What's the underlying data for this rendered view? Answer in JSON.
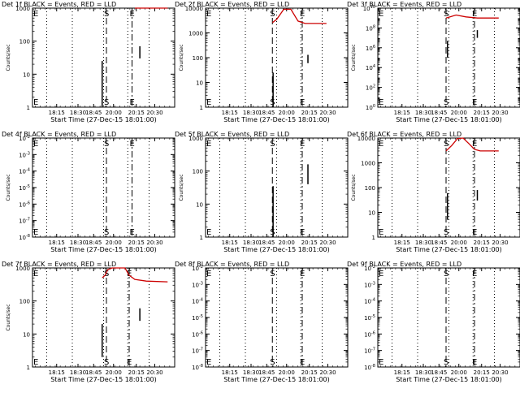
{
  "figure": {
    "xlabel": "Start Time (27-Dec-15 18:01:00)",
    "ylabel": "Counts/sec",
    "x_ticks": [
      "18:15",
      "18:30",
      "18:45",
      "20:00",
      "20:15",
      "20:30"
    ]
  },
  "colors": {
    "events": "#000000",
    "lld": "#cc0000",
    "background": "#ffffff"
  },
  "chart_data": [
    {
      "type": "line",
      "title": "Det 1f BLACK = Events, RED = LLD",
      "xlabel": "Start Time (27-Dec-15 18:01:00)",
      "ylabel": "Counts/sec",
      "yscale": "log",
      "y_ticks": [
        "1",
        "10",
        "100",
        "1000"
      ],
      "markers": [
        {
          "label": "E",
          "x": 0.0
        },
        {
          "label": "S",
          "x": 0.52
        },
        {
          "label": "E",
          "x": 0.7
        }
      ],
      "events": [
        {
          "x": 0.49,
          "y": [
            1,
            25
          ]
        },
        {
          "x": 0.755,
          "y": [
            30,
            70
          ]
        }
      ],
      "lld": [
        [
          0.72,
          1000
        ],
        [
          0.8,
          1000
        ],
        [
          0.95,
          1000
        ]
      ]
    },
    {
      "type": "line",
      "title": "Det 2f BLACK = Events, RED = LLD",
      "xlabel": "Start Time (27-Dec-15 18:01:00)",
      "ylabel": "Counts/sec",
      "yscale": "log",
      "y_ticks": [
        "1",
        "10",
        "100",
        "1000",
        "10000"
      ],
      "markers": [
        {
          "label": "E",
          "x": 0.0
        },
        {
          "label": "S",
          "x": 0.47
        },
        {
          "label": "E",
          "x": 0.68
        }
      ],
      "events": [
        {
          "x": 0.475,
          "y": [
            1,
            25
          ]
        },
        {
          "x": 0.72,
          "y": [
            60,
            130
          ]
        }
      ],
      "lld": [
        [
          0.47,
          2600
        ],
        [
          0.5,
          3500
        ],
        [
          0.55,
          9000
        ],
        [
          0.6,
          9000
        ],
        [
          0.65,
          3000
        ],
        [
          0.7,
          2400
        ],
        [
          0.85,
          2400
        ]
      ]
    },
    {
      "type": "line",
      "title": "Det 3f BLACK = Events, RED = LLD",
      "xlabel": "Start Time (27-Dec-15 18:01:00)",
      "ylabel": "Counts/sec",
      "yscale": "log",
      "y_ticks": [
        "10^0",
        "10^2",
        "10^4",
        "10^6",
        "10^8",
        "10^10"
      ],
      "markers": [
        {
          "label": "E",
          "x": 0.0
        },
        {
          "label": "S",
          "x": 0.48
        },
        {
          "label": "E",
          "x": 0.68
        }
      ],
      "events": [
        {
          "x": 0.49,
          "y": [
            100000,
            5000000
          ]
        },
        {
          "x": 0.7,
          "y": [
            10000000,
            60000000
          ]
        }
      ],
      "lld": [
        [
          0.48,
          1000000000
        ],
        [
          0.55,
          2000000000
        ],
        [
          0.62,
          1300000000
        ],
        [
          0.7,
          1000000000
        ],
        [
          0.85,
          1000000000
        ]
      ]
    },
    {
      "type": "line",
      "title": "Det 4f BLACK = Events, RED = LLD",
      "xlabel": "Start Time (27-Dec-15 18:01:00)",
      "ylabel": "Counts/sec",
      "yscale": "log",
      "y_ticks": [
        "10^-8",
        "10^-7",
        "10^-6",
        "10^-5",
        "10^-4",
        "10^-3",
        "10^-2"
      ],
      "markers": [
        {
          "label": "E",
          "x": 0.0
        },
        {
          "label": "S",
          "x": 0.52
        },
        {
          "label": "E",
          "x": 0.7
        }
      ],
      "events": [],
      "lld": []
    },
    {
      "type": "line",
      "title": "Det 5f BLACK = Events, RED = LLD",
      "xlabel": "Start Time (27-Dec-15 18:01:00)",
      "ylabel": "Counts/sec",
      "yscale": "log",
      "y_ticks": [
        "1",
        "10",
        "100",
        "1000"
      ],
      "markers": [
        {
          "label": "E",
          "x": 0.0
        },
        {
          "label": "S",
          "x": 0.47
        },
        {
          "label": "E",
          "x": 0.68
        }
      ],
      "events": [
        {
          "x": 0.475,
          "y": [
            1,
            35
          ]
        },
        {
          "x": 0.72,
          "y": [
            40,
            160
          ]
        }
      ],
      "lld": []
    },
    {
      "type": "line",
      "title": "Det 6f BLACK = Events, RED = LLD",
      "xlabel": "Start Time (27-Dec-15 18:01:00)",
      "ylabel": "Counts/sec",
      "yscale": "log",
      "y_ticks": [
        "1",
        "10",
        "100",
        "1000",
        "10000"
      ],
      "markers": [
        {
          "label": "E",
          "x": 0.0
        },
        {
          "label": "S",
          "x": 0.48
        },
        {
          "label": "E",
          "x": 0.68
        }
      ],
      "events": [
        {
          "x": 0.49,
          "y": [
            5,
            60
          ]
        },
        {
          "x": 0.7,
          "y": [
            30,
            80
          ]
        }
      ],
      "lld": [
        [
          0.48,
          3000
        ],
        [
          0.52,
          5000
        ],
        [
          0.56,
          9500
        ],
        [
          0.6,
          10000
        ],
        [
          0.64,
          6000
        ],
        [
          0.68,
          3500
        ],
        [
          0.72,
          3000
        ],
        [
          0.85,
          3000
        ]
      ]
    },
    {
      "type": "line",
      "title": "Det 7f BLACK = Events, RED = LLD",
      "xlabel": "Start Time (27-Dec-15 18:01:00)",
      "ylabel": "Counts/sec",
      "yscale": "log",
      "y_ticks": [
        "1",
        "10",
        "100",
        "1000"
      ],
      "markers": [
        {
          "label": "E",
          "x": 0.0
        },
        {
          "label": "S",
          "x": 0.52
        },
        {
          "label": "E",
          "x": 0.68
        }
      ],
      "events": [
        {
          "x": 0.49,
          "y": [
            2,
            20
          ]
        },
        {
          "x": 0.755,
          "y": [
            25,
            60
          ]
        }
      ],
      "lld": [
        [
          0.49,
          500
        ],
        [
          0.51,
          600
        ],
        [
          0.53,
          900
        ],
        [
          0.56,
          1000
        ],
        [
          0.6,
          1000
        ],
        [
          0.65,
          1000
        ],
        [
          0.68,
          600
        ],
        [
          0.72,
          450
        ],
        [
          0.8,
          400
        ],
        [
          0.95,
          380
        ]
      ]
    },
    {
      "type": "line",
      "title": "Det 8f BLACK = Events, RED = LLD",
      "xlabel": "Start Time (27-Dec-15 18:01:00)",
      "ylabel": "",
      "yscale": "log",
      "y_ticks": [
        "10^-8",
        "10^-7",
        "10^-6",
        "10^-5",
        "10^-4",
        "10^-3",
        "10^-2"
      ],
      "markers": [
        {
          "label": "E",
          "x": 0.0
        },
        {
          "label": "S",
          "x": 0.47
        },
        {
          "label": "E",
          "x": 0.68
        }
      ],
      "events": [],
      "lld": []
    },
    {
      "type": "line",
      "title": "Det 9f BLACK = Events, RED = LLD",
      "xlabel": "Start Time (27-Dec-15 18:01:00)",
      "ylabel": "",
      "yscale": "log",
      "y_ticks": [
        "10^-8",
        "10^-7",
        "10^-6",
        "10^-5",
        "10^-4",
        "10^-3",
        "10^-2"
      ],
      "markers": [
        {
          "label": "E",
          "x": 0.0
        },
        {
          "label": "S",
          "x": 0.48
        },
        {
          "label": "E",
          "x": 0.68
        }
      ],
      "events": [],
      "lld": []
    }
  ]
}
